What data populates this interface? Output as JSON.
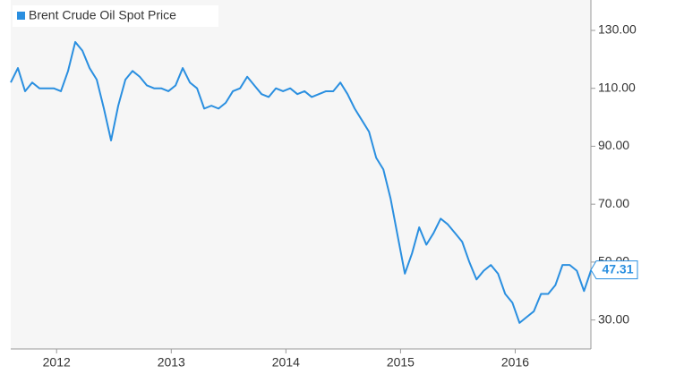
{
  "chart_data": {
    "type": "line",
    "series": [
      {
        "name": "Brent Crude Oil Spot Price",
        "color": "#2a8fe0",
        "x": [
          2011.6,
          2011.6625,
          2011.725,
          2011.7875,
          2011.85,
          2011.9125,
          2011.975,
          2012.0375,
          2012.1,
          2012.1625,
          2012.225,
          2012.2875,
          2012.35,
          2012.4125,
          2012.475,
          2012.5375,
          2012.6,
          2012.6625,
          2012.725,
          2012.7875,
          2012.85,
          2012.9125,
          2012.975,
          2013.0375,
          2013.1,
          2013.1625,
          2013.225,
          2013.2875,
          2013.35,
          2013.4125,
          2013.475,
          2013.5375,
          2013.6,
          2013.6625,
          2013.725,
          2013.7875,
          2013.85,
          2013.9125,
          2013.975,
          2014.0375,
          2014.1,
          2014.1625,
          2014.225,
          2014.2875,
          2014.35,
          2014.4125,
          2014.475,
          2014.5375,
          2014.6,
          2014.6625,
          2014.725,
          2014.7875,
          2014.85,
          2014.9125,
          2014.975,
          2015.0375,
          2015.1,
          2015.1625,
          2015.225,
          2015.2875,
          2015.35,
          2015.4125,
          2015.475,
          2015.5375,
          2015.6,
          2015.6625,
          2015.725,
          2015.7875,
          2015.85,
          2015.9125,
          2015.975,
          2016.0375,
          2016.1,
          2016.1625,
          2016.225,
          2016.2875,
          2016.35,
          2016.4125,
          2016.475,
          2016.5375,
          2016.6,
          2016.6625
        ],
        "values": [
          112,
          117,
          109,
          112,
          110,
          110,
          110,
          109,
          116,
          126,
          123,
          117,
          113,
          103,
          92,
          104,
          113,
          116,
          114,
          111,
          110,
          110,
          109,
          111,
          117,
          112,
          110,
          103,
          104,
          103,
          105,
          109,
          110,
          114,
          111,
          108,
          107,
          110,
          109,
          110,
          108,
          109,
          107,
          108,
          109,
          109,
          112,
          108,
          103,
          99,
          95,
          86,
          82,
          72,
          59,
          46,
          53,
          62,
          56,
          60,
          65,
          63,
          60,
          57,
          50,
          44,
          47,
          49,
          46,
          39,
          36,
          29,
          31,
          33,
          39,
          39,
          42,
          49,
          49,
          47,
          40,
          47.31
        ]
      }
    ],
    "xlim": [
      2011.6,
      2016.66
    ],
    "xticks": [
      2012,
      2013,
      2014,
      2015,
      2016
    ],
    "ylim": [
      20,
      140.5
    ],
    "yticks": [
      {
        "value": 30,
        "label": "30.00"
      },
      {
        "value": 50,
        "label": "50.00"
      },
      {
        "value": 70,
        "label": "70.00"
      },
      {
        "value": 90,
        "label": "90.00"
      },
      {
        "value": 110,
        "label": "110.00"
      },
      {
        "value": 130,
        "label": "130.00"
      }
    ],
    "grid": false,
    "legend": "top-left"
  }
}
